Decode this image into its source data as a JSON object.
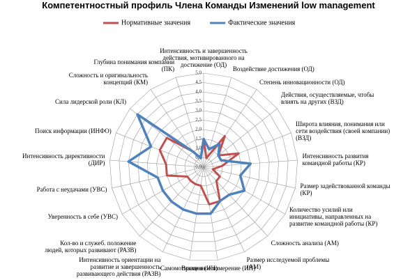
{
  "chart_data": {
    "type": "radar",
    "title": "Компетентностный профиль Члена Команды Изменений low management",
    "categories": [
      "Интенсивность и завершенность действия, мотивированного на достижение (ОД)",
      "Воздействие достижения (ОД)",
      "Степень инновационности (ОД)",
      "Действия, осуществляемые, чтобы влиять на других (ВЗД)",
      "Широта влияния, понимания или сети воздействия (своей компании) (ВЗД)",
      "Интенсивность развития командной работы (КР)",
      "Размер задействованной команды (КР)",
      "Количество усилий или инициативы, направленных на развитие командной работы (КР)",
      "Сложность анализа (АМ)",
      "Размер исследуемой проблемы (АМ)",
      "Временное измерение (ИН)",
      "Самомотивация (ИН)",
      "Интенсивность ориентации на развитие и завершенность развивающего действия (РАЗВ)",
      "Кол-во и служеб. положение людей, которых развивают (РАЗВ)",
      "Уверенность в себе (УВС)",
      "Работа с неудачами (УВС)",
      "Интенсивность директивности (ДИР)",
      "Поиск информации (ИНФО)",
      "Сила лидерской роли (КЛ)",
      "Сложность и оригинальность концепций (КМ)",
      "Глубина понимания компании (ПК)"
    ],
    "series": [
      {
        "name": "Нормативные значения",
        "color": "#c0504d",
        "values": [
          1.5,
          0.5,
          2.0,
          1.0,
          2.0,
          1.0,
          0.5,
          1.0,
          1.0,
          2.0,
          2.0,
          1.0,
          1.0,
          1.0,
          1.0,
          2.0,
          2.0,
          2.5,
          2.5,
          1.0,
          0.5
        ]
      },
      {
        "name": "Фактические значения",
        "color": "#4f81bd",
        "values": [
          1.5,
          1.0,
          1.5,
          1.0,
          1.0,
          2.5,
          2.0,
          2.5,
          2.0,
          2.0,
          2.5,
          2.5,
          2.5,
          2.5,
          2.5,
          2.5,
          4.0,
          3.0,
          4.5,
          1.0,
          0.5
        ]
      }
    ],
    "rlim": [
      0,
      5
    ],
    "rticks": [
      {
        "value": 0,
        "label": "0,0"
      },
      {
        "value": 0.5,
        "label": "0,5"
      },
      {
        "value": 1,
        "label": "1,0"
      },
      {
        "value": 1.5,
        "label": "1,5"
      },
      {
        "value": 2,
        "label": "2,0"
      },
      {
        "value": 2.5,
        "label": "2,5"
      },
      {
        "value": 3,
        "label": "3,0"
      },
      {
        "value": 3.5,
        "label": "3,5"
      },
      {
        "value": 4,
        "label": "4,0"
      },
      {
        "value": 4.5,
        "label": "4,5"
      },
      {
        "value": 5,
        "label": "5,0"
      }
    ],
    "grid": true
  }
}
